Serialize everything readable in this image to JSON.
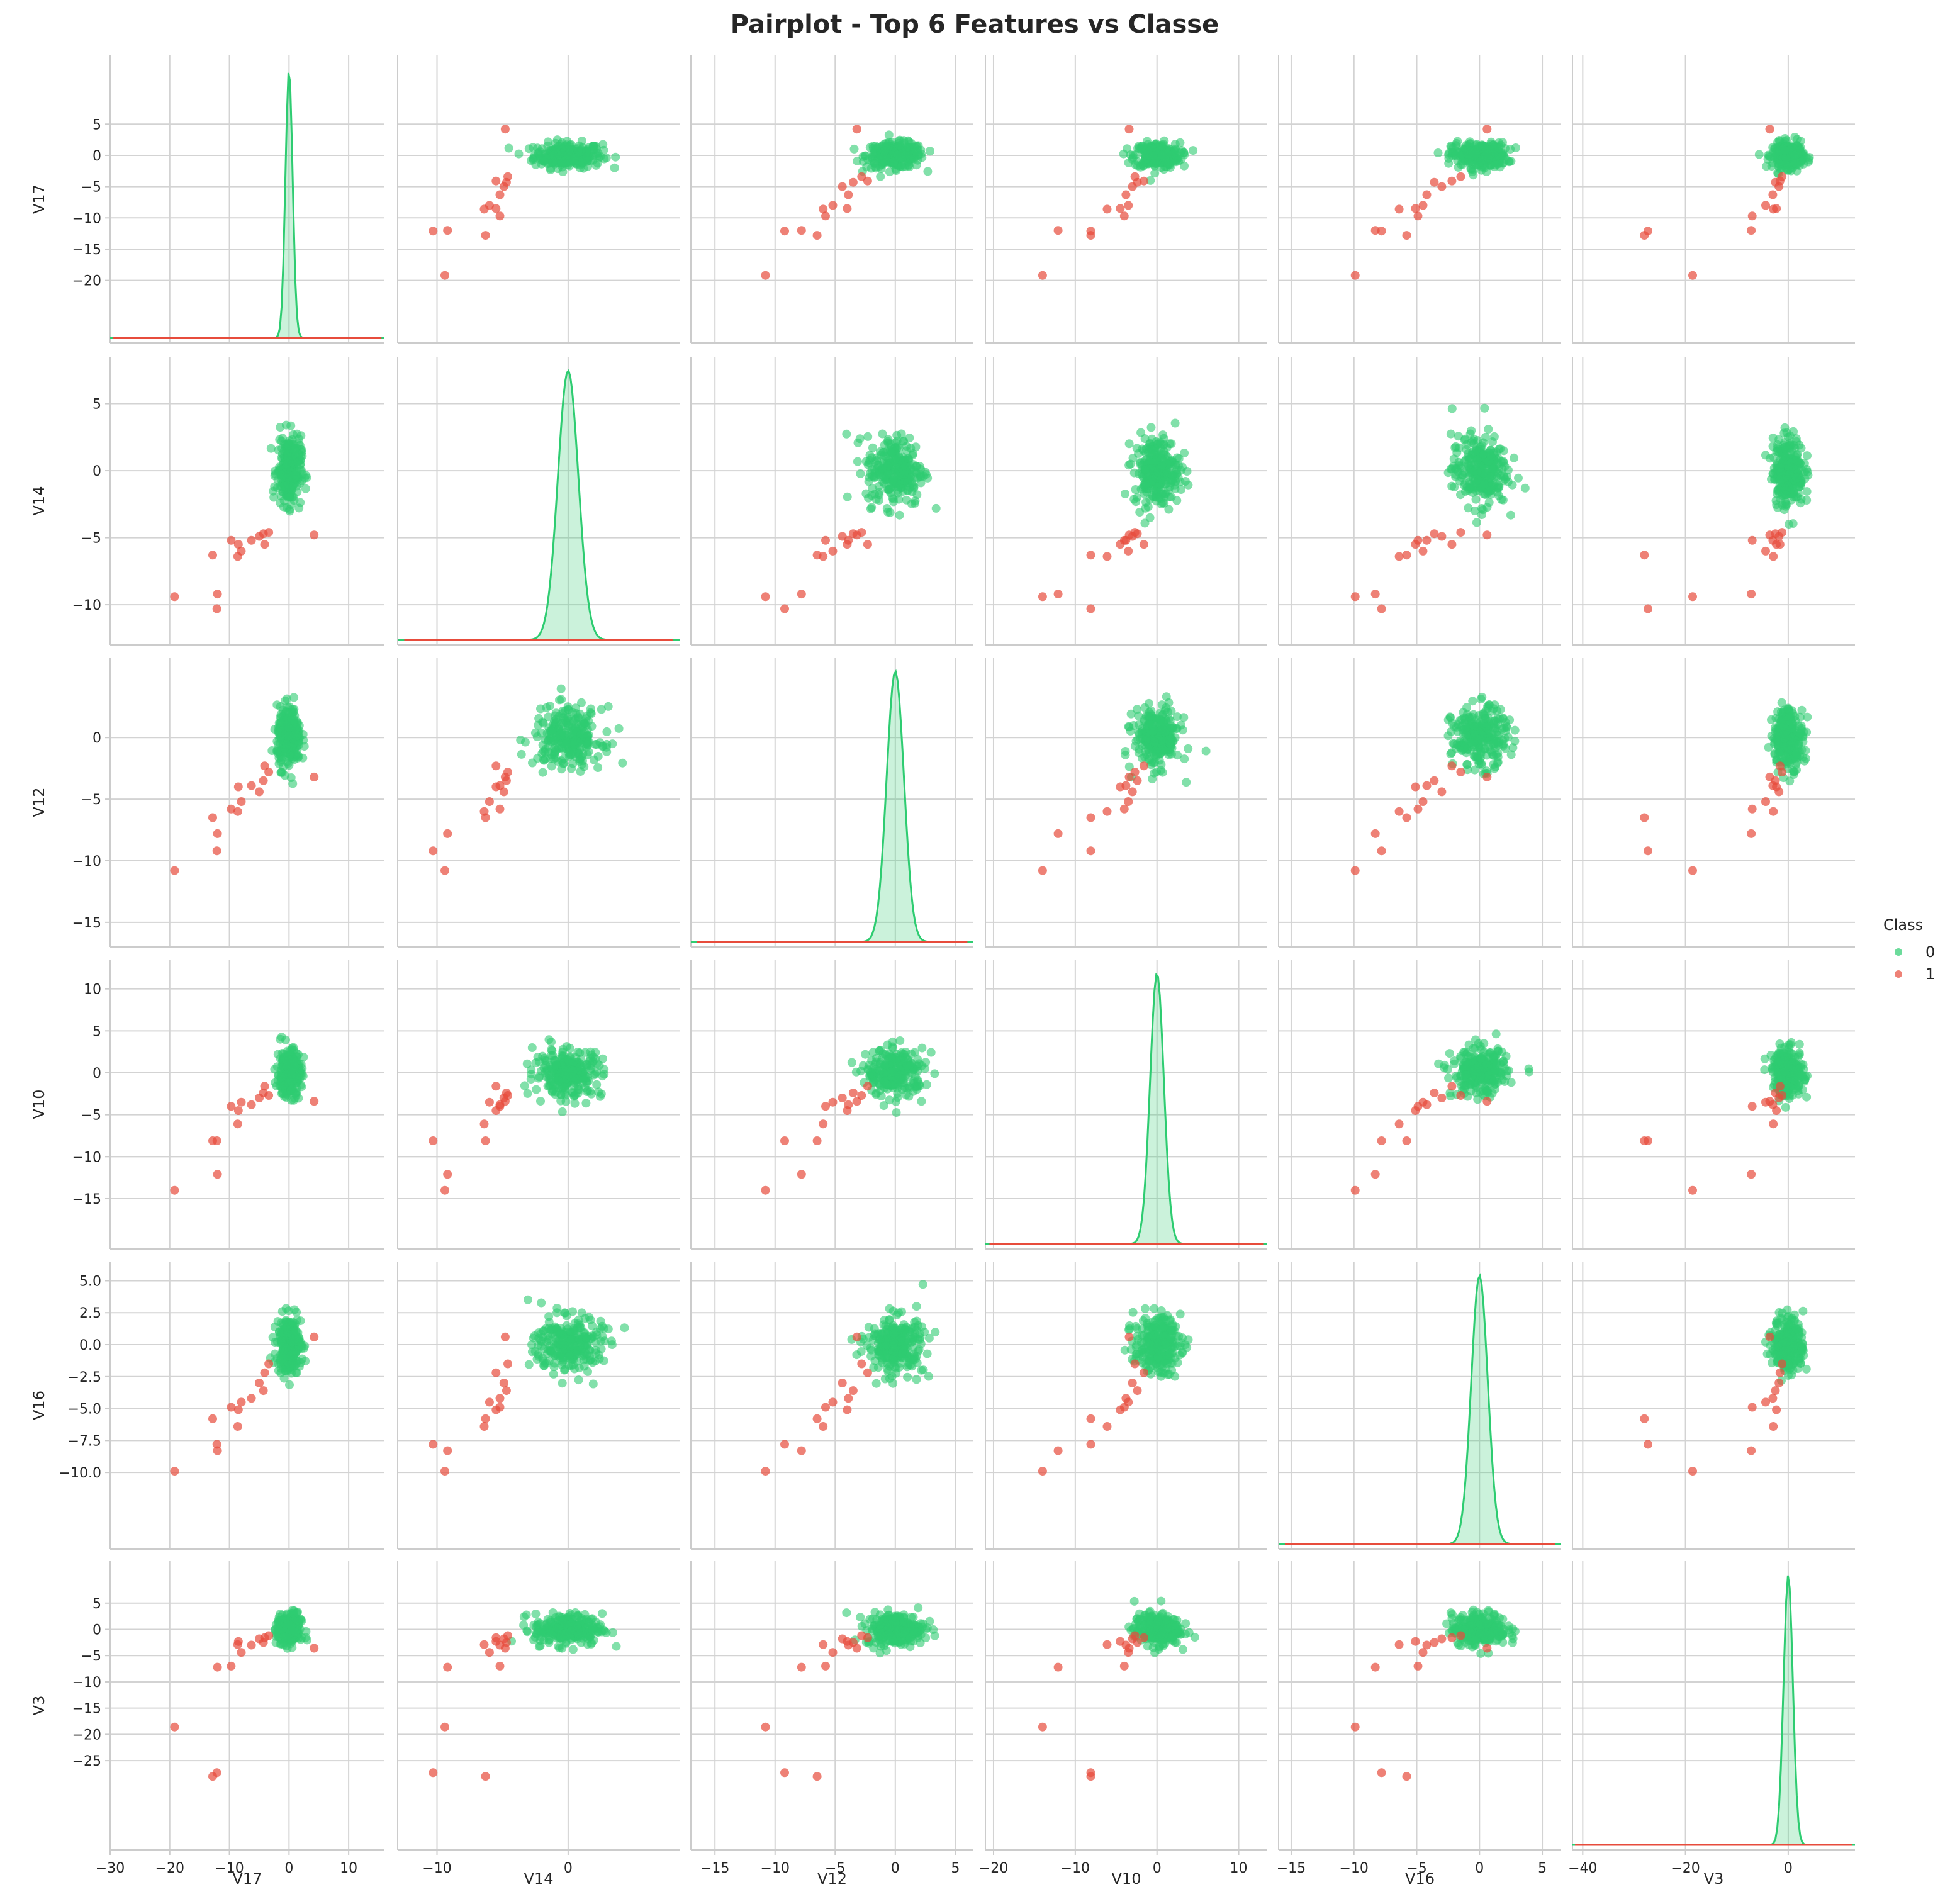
{
  "chart_data": {
    "type": "scatter",
    "title": "Pairplot - Top 6 Features vs Classe",
    "features": [
      "V17",
      "V14",
      "V12",
      "V10",
      "V16",
      "V3"
    ],
    "x_ticks": {
      "V17": [
        -30,
        -20,
        -10,
        0,
        10
      ],
      "V14": [
        -10,
        0
      ],
      "V12": [
        -15,
        -10,
        -5,
        0,
        5
      ],
      "V10": [
        -20,
        -10,
        0,
        10
      ],
      "V16": [
        -15,
        -10,
        -5,
        0,
        5
      ],
      "V3": [
        -40,
        -20,
        0
      ]
    },
    "y_ticks": {
      "V17": [
        "5",
        "0",
        "−5",
        "−10",
        "−15",
        "−20"
      ],
      "V14": [
        "5",
        "0",
        "−5",
        "−10"
      ],
      "V12": [
        "0",
        "−5",
        "−10",
        "−15"
      ],
      "V10": [
        "10",
        "5",
        "0",
        "−5",
        "−10",
        "−15"
      ],
      "V16": [
        "5.0",
        "2.5",
        "0.0",
        "−2.5",
        "−5.0",
        "−7.5",
        "−10.0"
      ],
      "V3": [
        "5",
        "0",
        "−5",
        "−10",
        "−15",
        "−20",
        "−25"
      ]
    },
    "x_tick_labels": {
      "V17": [
        "−30",
        "−20",
        "−10",
        "0",
        "10"
      ],
      "V14": [
        "−10",
        "0"
      ],
      "V12": [
        "−15",
        "−10",
        "−5",
        "0",
        "5"
      ],
      "V10": [
        "−20",
        "−10",
        "0",
        "10"
      ],
      "V16": [
        "−15",
        "−10",
        "−5",
        "0",
        "5"
      ],
      "V3": [
        "−40",
        "−20",
        "0"
      ]
    },
    "ranges": {
      "V17": [
        -30,
        16
      ],
      "V14": [
        -13,
        8.5
      ],
      "V12": [
        -17,
        6.5
      ],
      "V10": [
        -21,
        13.5
      ],
      "V16": [
        -16,
        6.5
      ],
      "V3": [
        -42,
        13
      ]
    },
    "series": [
      {
        "name": "0",
        "color": "#2ecc71"
      },
      {
        "name": "1",
        "color": "#e74c3c"
      }
    ],
    "class1_points": [
      {
        "V17": -19.2,
        "V14": -9.4,
        "V12": -10.8,
        "V10": -14.0,
        "V16": -9.9,
        "V3": -18.6
      },
      {
        "V17": -12.1,
        "V14": -10.3,
        "V12": -9.2,
        "V10": -8.1,
        "V16": -7.8,
        "V3": -27.3
      },
      {
        "V17": -12.8,
        "V14": -6.3,
        "V12": -6.5,
        "V10": -8.1,
        "V16": -5.8,
        "V3": -28.0
      },
      {
        "V17": -9.7,
        "V14": -5.2,
        "V12": -5.8,
        "V10": -4.0,
        "V16": -4.9,
        "V3": -7.0
      },
      {
        "V17": -8.0,
        "V14": -6.0,
        "V12": -5.2,
        "V10": -3.5,
        "V16": -4.5,
        "V3": -4.4
      },
      {
        "V17": -6.3,
        "V14": -5.2,
        "V12": -3.9,
        "V10": -3.8,
        "V16": -4.2,
        "V3": -3.0
      },
      {
        "V17": -4.3,
        "V14": -4.7,
        "V12": -3.5,
        "V10": -2.4,
        "V16": -3.6,
        "V3": -2.5
      },
      {
        "V17": -5.0,
        "V14": -4.9,
        "V12": -4.4,
        "V10": -3.0,
        "V16": -3.0,
        "V3": -1.8
      },
      {
        "V17": -4.1,
        "V14": -5.5,
        "V12": -2.3,
        "V10": -1.6,
        "V16": -2.2,
        "V3": -1.6
      },
      {
        "V17": -12.0,
        "V14": -9.2,
        "V12": -7.8,
        "V10": -12.1,
        "V16": -8.3,
        "V3": -7.2
      },
      {
        "V17": -8.6,
        "V14": -6.4,
        "V12": -6.0,
        "V10": -6.1,
        "V16": -6.4,
        "V3": -2.9
      },
      {
        "V17": -8.5,
        "V14": -5.5,
        "V12": -4.0,
        "V10": -4.5,
        "V16": -5.1,
        "V3": -2.3
      },
      {
        "V17": 4.2,
        "V14": -4.8,
        "V12": -3.2,
        "V10": -3.4,
        "V16": 0.6,
        "V3": -3.6
      },
      {
        "V17": -3.4,
        "V14": -4.6,
        "V12": -2.8,
        "V10": -2.7,
        "V16": -1.5,
        "V3": -1.2
      }
    ],
    "legend": {
      "title": "Class",
      "position": "right",
      "entries": [
        "0",
        "1"
      ]
    },
    "grid": true
  }
}
